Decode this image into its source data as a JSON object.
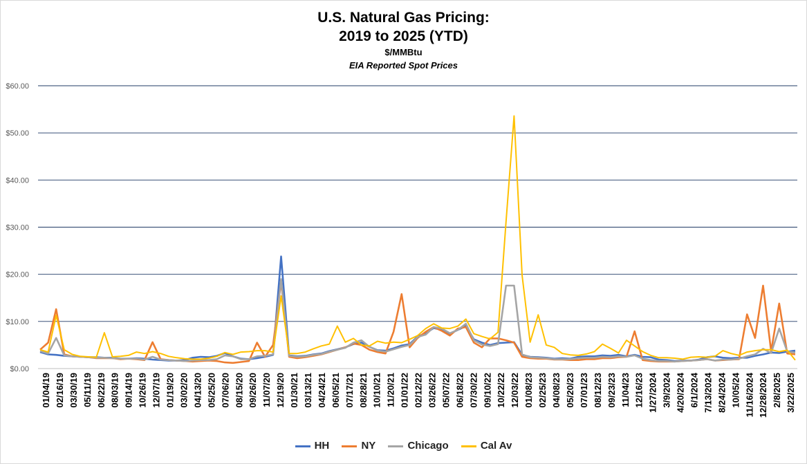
{
  "chart_data": {
    "type": "line",
    "title": "U.S. Natural Gas Pricing:",
    "title_line2": "2019 to 2025 (YTD)",
    "subtitle": "$/MMBtu",
    "subtitle2": "EIA Reported Spot Prices",
    "xlabel": "",
    "ylabel": "",
    "ylim": [
      0,
      60
    ],
    "yticks": [
      "$0.00",
      "$10.00",
      "$20.00",
      "$30.00",
      "$40.00",
      "$50.00",
      "$60.00"
    ],
    "grid": true,
    "legend_position": "bottom",
    "x_tick_labels": [
      "01/04/19",
      "02/16/19",
      "03/30/19",
      "05/11/19",
      "06/22/19",
      "08/03/19",
      "09/14/19",
      "10/26/19",
      "12/07/19",
      "01/19/20",
      "03/02/20",
      "04/13/20",
      "05/25/20",
      "07/06/20",
      "08/15/20",
      "09/26/20",
      "11/07/20",
      "12/19/20",
      "01/30/21",
      "03/13/21",
      "04/24/21",
      "06/05/21",
      "07/17/21",
      "08/28/21",
      "10/10/21",
      "11/20/21",
      "01/01/22",
      "02/12/22",
      "03/26/22",
      "05/07/22",
      "06/18/22",
      "07/30/22",
      "09/10/22",
      "10/22/22",
      "12/03/22",
      "01/08/23",
      "02/25/23",
      "04/08/23",
      "05/20/23",
      "07/01/23",
      "08/12/23",
      "09/23/23",
      "11/04/23",
      "12/16/23",
      "1/27/2024",
      "3/9/2024",
      "4/20/2024",
      "6/1/2024",
      "7/13/2024",
      "8/24/2024",
      "10/05/24",
      "11/16/2024",
      "12/28/2024",
      "2/8/2025",
      "3/22/2025"
    ],
    "series": [
      {
        "name": "HH",
        "color": "#4472c4",
        "values": [
          3.5,
          3.0,
          2.9,
          2.7,
          2.6,
          2.5,
          2.4,
          2.4,
          2.3,
          2.3,
          2.1,
          2.1,
          2.2,
          2.1,
          1.9,
          1.8,
          1.7,
          1.7,
          1.8,
          2.3,
          2.5,
          2.4,
          2.7,
          3.3,
          2.6,
          2.1,
          2.0,
          2.2,
          2.5,
          2.9,
          23.8,
          2.8,
          2.6,
          2.7,
          3.0,
          3.2,
          3.7,
          4.1,
          4.5,
          5.2,
          5.5,
          4.6,
          3.9,
          3.8,
          4.3,
          4.9,
          5.2,
          6.8,
          7.5,
          8.6,
          8.2,
          7.4,
          8.2,
          9.0,
          6.2,
          5.5,
          5.0,
          5.4,
          5.5,
          5.6,
          2.9,
          2.5,
          2.4,
          2.3,
          2.1,
          2.2,
          2.1,
          2.5,
          2.6,
          2.6,
          2.8,
          2.7,
          2.9,
          2.6,
          2.9,
          2.5,
          2.4,
          1.9,
          1.8,
          1.6,
          1.7,
          1.7,
          1.9,
          2.4,
          2.6,
          2.3,
          2.2,
          2.3,
          2.3,
          2.7,
          3.0,
          3.4,
          3.3,
          3.6,
          3.8
        ]
      },
      {
        "name": "NY",
        "color": "#ed7d31",
        "values": [
          4.0,
          5.5,
          12.6,
          3.0,
          2.6,
          2.5,
          2.4,
          2.2,
          2.2,
          2.2,
          2.0,
          2.1,
          2.0,
          1.8,
          5.6,
          2.0,
          1.8,
          1.7,
          1.6,
          1.5,
          1.6,
          1.7,
          1.6,
          1.3,
          1.2,
          1.4,
          1.6,
          5.5,
          2.5,
          5.0,
          18.5,
          2.5,
          2.2,
          2.4,
          2.7,
          3.0,
          3.5,
          4.0,
          4.5,
          5.3,
          5.0,
          4.0,
          3.5,
          3.2,
          7.8,
          15.8,
          4.5,
          6.5,
          7.8,
          8.8,
          8.0,
          7.0,
          8.5,
          8.8,
          5.5,
          4.5,
          6.4,
          6.4,
          6.0,
          5.5,
          2.5,
          2.2,
          2.1,
          2.1,
          1.9,
          1.9,
          1.8,
          1.8,
          2.0,
          2.0,
          2.2,
          2.2,
          2.4,
          2.5,
          7.9,
          1.8,
          1.6,
          1.5,
          1.5,
          1.5,
          1.6,
          1.7,
          1.8,
          2.0,
          1.7,
          1.8,
          1.9,
          2.0,
          11.5,
          6.5,
          17.6,
          3.7,
          13.8,
          3.2,
          3.0
        ]
      },
      {
        "name": "Chicago",
        "color": "#a5a5a5",
        "values": [
          3.7,
          3.2,
          6.5,
          2.8,
          2.6,
          2.5,
          2.4,
          2.3,
          2.3,
          2.2,
          2.1,
          2.1,
          2.1,
          1.9,
          2.5,
          1.9,
          1.8,
          1.7,
          1.6,
          1.7,
          1.8,
          1.8,
          2.0,
          2.8,
          2.6,
          2.0,
          2.0,
          2.6,
          2.7,
          3.0,
          19.0,
          2.7,
          2.5,
          2.6,
          2.9,
          3.1,
          3.6,
          4.0,
          4.4,
          5.5,
          6.0,
          4.6,
          3.8,
          3.6,
          4.1,
          4.6,
          5.0,
          6.7,
          7.2,
          8.8,
          8.5,
          7.5,
          8.2,
          9.5,
          6.0,
          5.1,
          4.8,
          5.2,
          17.6,
          17.6,
          3.0,
          2.4,
          2.3,
          2.2,
          2.0,
          2.0,
          2.0,
          2.2,
          2.3,
          2.3,
          2.5,
          2.4,
          2.6,
          2.5,
          2.8,
          2.1,
          1.8,
          1.6,
          1.6,
          1.5,
          1.6,
          1.7,
          1.8,
          2.0,
          1.7,
          1.9,
          1.9,
          2.1,
          2.6,
          3.0,
          4.2,
          3.3,
          8.5,
          3.6,
          3.4
        ]
      },
      {
        "name": "Cal Av",
        "color": "#ffc000",
        "values": [
          4.0,
          3.5,
          11.3,
          4.0,
          3.0,
          2.6,
          2.5,
          2.4,
          7.6,
          2.5,
          2.6,
          2.8,
          3.5,
          3.2,
          3.6,
          3.2,
          2.6,
          2.3,
          2.1,
          2.0,
          2.0,
          2.2,
          2.6,
          3.4,
          3.0,
          3.5,
          3.6,
          3.8,
          3.8,
          3.5,
          15.4,
          3.2,
          3.2,
          3.5,
          4.2,
          4.8,
          5.2,
          9.0,
          5.6,
          6.4,
          5.0,
          4.8,
          5.8,
          5.4,
          5.6,
          5.5,
          6.2,
          7.0,
          8.5,
          9.5,
          8.6,
          8.5,
          9.0,
          10.5,
          7.4,
          6.8,
          6.3,
          7.7,
          31.2,
          53.6,
          19.8,
          5.6,
          11.4,
          5.0,
          4.5,
          3.2,
          2.9,
          2.8,
          3.1,
          3.6,
          5.2,
          4.3,
          3.3,
          6.0,
          4.8,
          3.6,
          2.8,
          2.3,
          2.3,
          2.2,
          2.0,
          2.4,
          2.5,
          2.4,
          2.6,
          3.8,
          3.2,
          2.8,
          3.5,
          3.8,
          4.0,
          4.0,
          3.6,
          3.9,
          1.8
        ]
      }
    ]
  }
}
